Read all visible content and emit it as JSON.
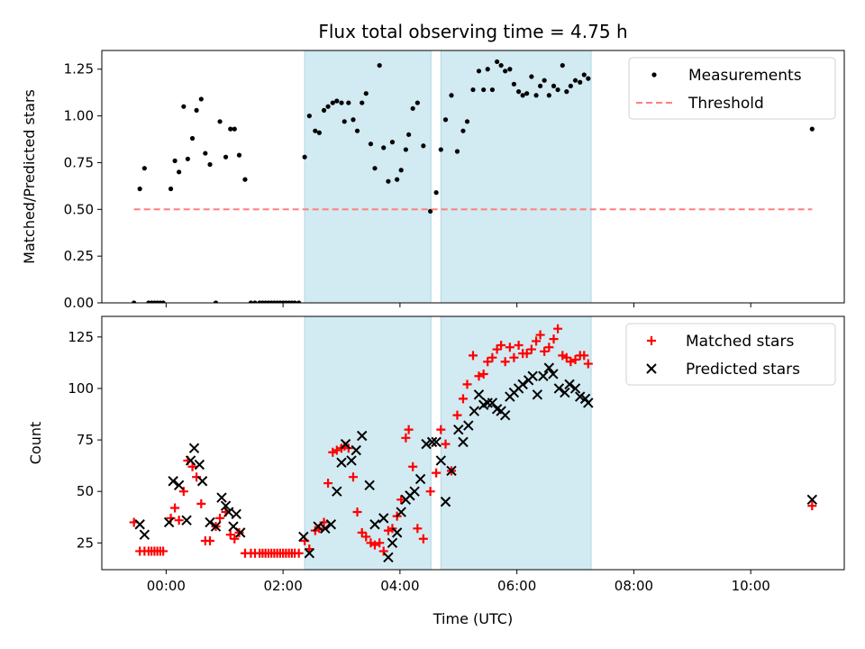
{
  "chart_data": {
    "title": "Flux total observing time = 4.75 h",
    "xlabel": "Time (UTC)",
    "xlim": [
      -1.1,
      11.6
    ],
    "xticks": [
      0,
      2,
      4,
      6,
      8,
      10
    ],
    "xtick_labels": [
      "00:00",
      "02:00",
      "04:00",
      "06:00",
      "08:00",
      "10:00"
    ],
    "shaded_intervals": [
      [
        2.37,
        4.53
      ],
      [
        4.7,
        7.27
      ]
    ],
    "shade_color": "#add8e6",
    "panels": [
      {
        "type": "scatter",
        "ylabel": "Matched/Predicted stars",
        "ylim": [
          0,
          1.35
        ],
        "yticks": [
          0,
          0.25,
          0.5,
          0.75,
          1.0,
          1.25
        ],
        "ytick_labels": [
          "0.00",
          "0.25",
          "0.50",
          "0.75",
          "1.00",
          "1.25"
        ],
        "legend_position": "top-right",
        "series": [
          {
            "name": "Measurements",
            "marker": "dot",
            "color": "#000000",
            "x": [
              -0.55,
              -0.45,
              -0.37,
              -0.3,
              -0.25,
              -0.2,
              -0.15,
              -0.1,
              -0.05,
              0.08,
              0.15,
              0.22,
              0.3,
              0.37,
              0.45,
              0.52,
              0.6,
              0.67,
              0.75,
              0.85,
              0.92,
              1.02,
              1.1,
              1.17,
              1.25,
              1.35,
              1.45,
              1.52,
              1.6,
              1.65,
              1.7,
              1.75,
              1.8,
              1.85,
              1.9,
              1.95,
              2.0,
              2.05,
              2.1,
              2.15,
              2.2,
              2.27,
              2.37,
              2.45,
              2.55,
              2.62,
              2.7,
              2.77,
              2.85,
              2.92,
              3.0,
              3.05,
              3.12,
              3.2,
              3.27,
              3.35,
              3.42,
              3.5,
              3.57,
              3.65,
              3.72,
              3.8,
              3.87,
              3.95,
              4.02,
              4.1,
              4.15,
              4.22,
              4.3,
              4.4,
              4.52,
              4.62,
              4.7,
              4.78,
              4.88,
              4.98,
              5.08,
              5.15,
              5.25,
              5.35,
              5.43,
              5.5,
              5.58,
              5.66,
              5.73,
              5.8,
              5.88,
              5.95,
              6.03,
              6.1,
              6.17,
              6.25,
              6.33,
              6.4,
              6.47,
              6.55,
              6.63,
              6.7,
              6.78,
              6.85,
              6.92,
              7.0,
              7.08,
              7.15,
              7.22,
              11.05
            ],
            "y": [
              0,
              0.61,
              0.72,
              0,
              0,
              0,
              0,
              0,
              0,
              0.61,
              0.76,
              0.7,
              1.05,
              0.77,
              0.88,
              1.03,
              1.09,
              0.8,
              0.74,
              0,
              0.97,
              0.78,
              0.93,
              0.93,
              0.79,
              0.66,
              0,
              0,
              0,
              0,
              0,
              0,
              0,
              0,
              0,
              0,
              0,
              0,
              0,
              0,
              0,
              0,
              0.78,
              1.0,
              0.92,
              0.91,
              1.03,
              1.05,
              1.07,
              1.08,
              1.07,
              0.97,
              1.07,
              0.98,
              0.92,
              1.07,
              1.12,
              0.85,
              0.72,
              1.27,
              0.83,
              0.65,
              0.86,
              0.66,
              0.71,
              0.82,
              0.9,
              1.04,
              1.07,
              0.84,
              0.49,
              0.59,
              0.82,
              0.98,
              1.11,
              0.81,
              0.92,
              0.97,
              1.14,
              1.24,
              1.14,
              1.25,
              1.14,
              1.29,
              1.27,
              1.24,
              1.25,
              1.17,
              1.13,
              1.11,
              1.12,
              1.21,
              1.11,
              1.16,
              1.19,
              1.11,
              1.16,
              1.14,
              1.27,
              1.13,
              1.16,
              1.19,
              1.18,
              1.22,
              1.2,
              0.93
            ]
          },
          {
            "name": "Threshold",
            "marker": "dashed-line",
            "color": "#ff7f7f",
            "x": [
              -0.55,
              11.05
            ],
            "y": [
              0.5,
              0.5
            ]
          }
        ]
      },
      {
        "type": "scatter",
        "ylabel": "Count",
        "ylim": [
          12,
          135
        ],
        "yticks": [
          25,
          50,
          75,
          100,
          125
        ],
        "ytick_labels": [
          "25",
          "50",
          "75",
          "100",
          "125"
        ],
        "legend_position": "top-right",
        "series": [
          {
            "name": "Matched stars",
            "marker": "plus",
            "color": "#ff0000",
            "x": [
              -0.55,
              -0.45,
              -0.37,
              -0.3,
              -0.25,
              -0.2,
              -0.15,
              -0.1,
              -0.05,
              0.08,
              0.15,
              0.22,
              0.3,
              0.37,
              0.45,
              0.52,
              0.6,
              0.67,
              0.75,
              0.85,
              0.92,
              1.02,
              1.1,
              1.17,
              1.25,
              1.35,
              1.45,
              1.52,
              1.6,
              1.65,
              1.7,
              1.75,
              1.8,
              1.85,
              1.9,
              1.95,
              2.0,
              2.05,
              2.1,
              2.15,
              2.2,
              2.27,
              2.37,
              2.45,
              2.55,
              2.62,
              2.7,
              2.77,
              2.85,
              2.92,
              3.0,
              3.05,
              3.12,
              3.2,
              3.27,
              3.35,
              3.42,
              3.5,
              3.57,
              3.65,
              3.72,
              3.8,
              3.87,
              3.95,
              4.02,
              4.1,
              4.15,
              4.22,
              4.3,
              4.4,
              4.52,
              4.62,
              4.7,
              4.78,
              4.88,
              4.98,
              5.08,
              5.15,
              5.25,
              5.35,
              5.43,
              5.5,
              5.58,
              5.66,
              5.73,
              5.8,
              5.88,
              5.95,
              6.03,
              6.1,
              6.17,
              6.25,
              6.33,
              6.4,
              6.47,
              6.55,
              6.63,
              6.7,
              6.78,
              6.85,
              6.92,
              7.0,
              7.08,
              7.15,
              7.22,
              11.05
            ],
            "y": [
              35,
              21,
              21,
              21,
              21,
              21,
              21,
              21,
              21,
              37,
              42,
              36,
              50,
              65,
              62,
              57,
              44,
              26,
              26,
              33,
              37,
              40,
              29,
              27,
              30,
              20,
              20,
              20,
              20,
              20,
              20,
              20,
              20,
              20,
              20,
              20,
              20,
              20,
              20,
              20,
              20,
              20,
              26,
              22,
              31,
              32,
              35,
              54,
              69,
              70,
              71,
              72,
              71,
              57,
              40,
              30,
              28,
              25,
              24,
              25,
              21,
              31,
              32,
              38,
              46,
              76,
              80,
              62,
              32,
              27,
              50,
              59,
              80,
              73,
              60,
              87,
              95,
              102,
              116,
              106,
              107,
              113,
              115,
              119,
              121,
              113,
              120,
              115,
              121,
              117,
              117,
              119,
              123,
              126,
              118,
              120,
              124,
              129,
              116,
              115,
              113,
              114,
              116,
              116,
              112,
              43
            ]
          },
          {
            "name": "Predicted stars",
            "marker": "x",
            "color": "#000000",
            "x": [
              -0.45,
              -0.37,
              0.05,
              0.12,
              0.22,
              0.35,
              0.42,
              0.48,
              0.57,
              0.62,
              0.75,
              0.85,
              0.95,
              1.02,
              1.07,
              1.15,
              1.2,
              1.27,
              2.35,
              2.45,
              2.6,
              2.72,
              2.82,
              2.92,
              3.0,
              3.07,
              3.17,
              3.25,
              3.35,
              3.48,
              3.57,
              3.72,
              3.8,
              3.87,
              3.95,
              4.02,
              4.1,
              4.17,
              4.25,
              4.35,
              4.45,
              4.55,
              4.62,
              4.7,
              4.78,
              4.88,
              5.0,
              5.08,
              5.17,
              5.27,
              5.35,
              5.43,
              5.5,
              5.58,
              5.66,
              5.73,
              5.8,
              5.88,
              5.95,
              6.03,
              6.1,
              6.2,
              6.27,
              6.35,
              6.45,
              6.55,
              6.62,
              6.72,
              6.82,
              6.9,
              7.0,
              7.08,
              7.17,
              7.22,
              11.05
            ],
            "y": [
              34,
              29,
              35,
              55,
              53,
              36,
              65,
              71,
              63,
              55,
              35,
              33,
              47,
              43,
              40,
              33,
              39,
              30,
              28,
              20,
              33,
              32,
              34,
              50,
              64,
              73,
              65,
              70,
              77,
              53,
              34,
              37,
              18,
              25,
              30,
              40,
              46,
              48,
              50,
              56,
              73,
              74,
              74,
              65,
              45,
              60,
              80,
              74,
              82,
              89,
              97,
              92,
              93,
              93,
              90,
              89,
              87,
              96,
              98,
              100,
              102,
              104,
              106,
              97,
              106,
              110,
              107,
              100,
              98,
              102,
              100,
              96,
              95,
              93,
              46
            ]
          }
        ]
      }
    ]
  }
}
